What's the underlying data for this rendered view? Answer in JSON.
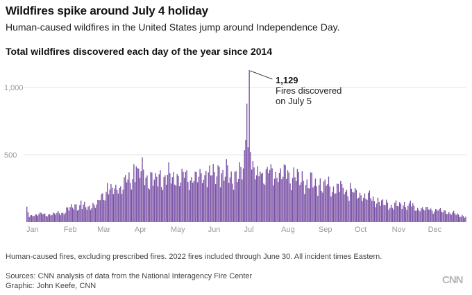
{
  "header": {
    "title": "Wildfires spike around July 4 holiday",
    "subtitle": "Human-caused wildfires in the United States jump around Independence Day.",
    "chart_title": "Total wildfires discovered each day of the year since 2014"
  },
  "footer": {
    "note": "Human-caused fires, excluding prescribed fires. 2022 fires included through June 30. All incident times Eastern.",
    "sources": "Sources: CNN analysis of data from the National Interagency Fire Center",
    "graphic": "Graphic: John Keefe, CNN",
    "logo": "CNN"
  },
  "chart_data": {
    "type": "bar",
    "title": "Total wildfires discovered each day of the year since 2014",
    "xlabel": "",
    "ylabel": "",
    "ylim": [
      0,
      1129
    ],
    "yticks": [
      500,
      1000
    ],
    "ytick_labels": [
      "500",
      "1,000"
    ],
    "months": [
      "Jan",
      "Feb",
      "Mar",
      "Apr",
      "May",
      "Jun",
      "Jul",
      "Aug",
      "Sep",
      "Oct",
      "Nov",
      "Dec"
    ],
    "month_start_days": [
      1,
      32,
      60,
      91,
      121,
      152,
      182,
      213,
      244,
      274,
      305,
      335
    ],
    "days_in_year": 366,
    "bar_color": "#7b52a6",
    "grid_color": "#e6e6e6",
    "anchors": [
      [
        1,
        40
      ],
      [
        10,
        60
      ],
      [
        20,
        55
      ],
      [
        31,
        70
      ],
      [
        40,
        120
      ],
      [
        50,
        110
      ],
      [
        59,
        130
      ],
      [
        66,
        220
      ],
      [
        75,
        240
      ],
      [
        85,
        300
      ],
      [
        95,
        370
      ],
      [
        105,
        310
      ],
      [
        115,
        330
      ],
      [
        130,
        330
      ],
      [
        140,
        325
      ],
      [
        152,
        340
      ],
      [
        160,
        360
      ],
      [
        172,
        340
      ],
      [
        180,
        360
      ],
      [
        184,
        380
      ],
      [
        190,
        350
      ],
      [
        205,
        355
      ],
      [
        215,
        350
      ],
      [
        225,
        330
      ],
      [
        235,
        290
      ],
      [
        245,
        275
      ],
      [
        255,
        255
      ],
      [
        265,
        230
      ],
      [
        274,
        210
      ],
      [
        285,
        185
      ],
      [
        295,
        145
      ],
      [
        305,
        120
      ],
      [
        315,
        130
      ],
      [
        325,
        100
      ],
      [
        335,
        95
      ],
      [
        345,
        85
      ],
      [
        355,
        65
      ],
      [
        366,
        40
      ]
    ],
    "featured_values": {
      "182": 535,
      "183": 610,
      "184": 880,
      "185": 555,
      "186": 1129,
      "187": 520,
      "188": 390,
      "1": 115,
      "2": 75,
      "46": 160,
      "60": 165,
      "68": 290,
      "90": 430,
      "92": 415,
      "100": 330,
      "108": 365,
      "145": 395,
      "150": 380,
      "161": 410,
      "175": 380,
      "178": 445,
      "195": 375,
      "205": 400,
      "218": 385,
      "245": 325,
      "250": 270,
      "262": 305,
      "270": 290,
      "315": 150,
      "320": 160
    },
    "annotation": {
      "day": 186,
      "value_label": "1,129",
      "text_line1": "Fires discovered",
      "text_line2": "on July 5"
    }
  }
}
